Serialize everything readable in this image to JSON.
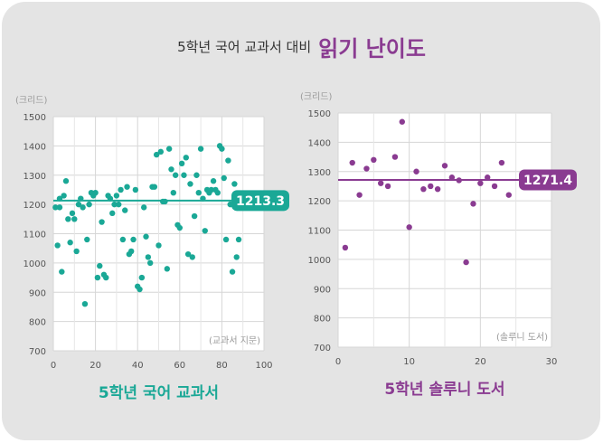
{
  "title": {
    "text": "5학년 국어 교과서 대비",
    "highlight": "읽기 난이도"
  },
  "chart_data": [
    {
      "type": "scatter",
      "title": "5학년 국어 교과서",
      "ylabel": "(크리드)",
      "xlabel": "(교과서 지문)",
      "xlim": [
        0,
        100
      ],
      "ylim": [
        700,
        1500
      ],
      "xticks": [
        0,
        20,
        40,
        60,
        80,
        100
      ],
      "yticks": [
        700,
        800,
        900,
        1000,
        1100,
        1200,
        1300,
        1400,
        1500
      ],
      "color": "#1aa896",
      "mean": 1213.3,
      "mean_label": "1213.3",
      "grid": true,
      "points": [
        [
          1,
          1190
        ],
        [
          2,
          1060
        ],
        [
          3,
          1220
        ],
        [
          3,
          1190
        ],
        [
          4,
          970
        ],
        [
          5,
          1230
        ],
        [
          6,
          1280
        ],
        [
          7,
          1150
        ],
        [
          8,
          1070
        ],
        [
          9,
          1170
        ],
        [
          10,
          1150
        ],
        [
          11,
          1040
        ],
        [
          12,
          1200
        ],
        [
          13,
          1220
        ],
        [
          14,
          1190
        ],
        [
          15,
          860
        ],
        [
          16,
          1080
        ],
        [
          17,
          1200
        ],
        [
          18,
          1240
        ],
        [
          19,
          1230
        ],
        [
          20,
          1240
        ],
        [
          21,
          950
        ],
        [
          22,
          990
        ],
        [
          23,
          1140
        ],
        [
          24,
          960
        ],
        [
          25,
          950
        ],
        [
          26,
          1230
        ],
        [
          27,
          1220
        ],
        [
          28,
          1170
        ],
        [
          29,
          1200
        ],
        [
          30,
          1230
        ],
        [
          31,
          1200
        ],
        [
          32,
          1250
        ],
        [
          33,
          1080
        ],
        [
          34,
          1180
        ],
        [
          35,
          1260
        ],
        [
          36,
          1030
        ],
        [
          37,
          1040
        ],
        [
          38,
          1080
        ],
        [
          39,
          1250
        ],
        [
          40,
          920
        ],
        [
          41,
          910
        ],
        [
          42,
          950
        ],
        [
          43,
          1190
        ],
        [
          44,
          1090
        ],
        [
          45,
          1020
        ],
        [
          46,
          1000
        ],
        [
          47,
          1260
        ],
        [
          48,
          1260
        ],
        [
          49,
          1370
        ],
        [
          50,
          1060
        ],
        [
          51,
          1380
        ],
        [
          52,
          1210
        ],
        [
          53,
          1210
        ],
        [
          54,
          980
        ],
        [
          55,
          1390
        ],
        [
          56,
          1320
        ],
        [
          57,
          1240
        ],
        [
          58,
          1300
        ],
        [
          59,
          1130
        ],
        [
          60,
          1120
        ],
        [
          61,
          1340
        ],
        [
          62,
          1300
        ],
        [
          63,
          1360
        ],
        [
          64,
          1030
        ],
        [
          65,
          1270
        ],
        [
          66,
          1020
        ],
        [
          67,
          1160
        ],
        [
          68,
          1300
        ],
        [
          69,
          1240
        ],
        [
          70,
          1390
        ],
        [
          71,
          1220
        ],
        [
          72,
          1110
        ],
        [
          73,
          1250
        ],
        [
          74,
          1240
        ],
        [
          75,
          1250
        ],
        [
          76,
          1280
        ],
        [
          77,
          1250
        ],
        [
          78,
          1240
        ],
        [
          79,
          1400
        ],
        [
          80,
          1390
        ],
        [
          81,
          1290
        ],
        [
          82,
          1080
        ],
        [
          83,
          1350
        ],
        [
          84,
          1200
        ],
        [
          85,
          970
        ],
        [
          86,
          1270
        ],
        [
          87,
          1020
        ],
        [
          88,
          1080
        ],
        [
          90,
          1200
        ]
      ]
    },
    {
      "type": "scatter",
      "title": "5학년 솔루니 도서",
      "ylabel": "(크리드)",
      "xlabel": "(솔루니 도서)",
      "xlim": [
        0,
        30
      ],
      "ylim": [
        700,
        1500
      ],
      "xticks": [
        0,
        10,
        20,
        30
      ],
      "yticks": [
        700,
        800,
        900,
        1000,
        1100,
        1200,
        1300,
        1400,
        1500
      ],
      "color": "#8a3b91",
      "mean": 1271.4,
      "mean_label": "1271.4",
      "grid": true,
      "points": [
        [
          1,
          1040
        ],
        [
          2,
          1330
        ],
        [
          3,
          1220
        ],
        [
          4,
          1310
        ],
        [
          5,
          1340
        ],
        [
          6,
          1260
        ],
        [
          7,
          1250
        ],
        [
          8,
          1350
        ],
        [
          9,
          1470
        ],
        [
          10,
          1110
        ],
        [
          11,
          1300
        ],
        [
          12,
          1240
        ],
        [
          13,
          1250
        ],
        [
          14,
          1240
        ],
        [
          15,
          1320
        ],
        [
          16,
          1280
        ],
        [
          17,
          1270
        ],
        [
          18,
          990
        ],
        [
          19,
          1190
        ],
        [
          20,
          1260
        ],
        [
          21,
          1280
        ],
        [
          22,
          1250
        ],
        [
          23,
          1330
        ],
        [
          24,
          1220
        ]
      ]
    }
  ]
}
